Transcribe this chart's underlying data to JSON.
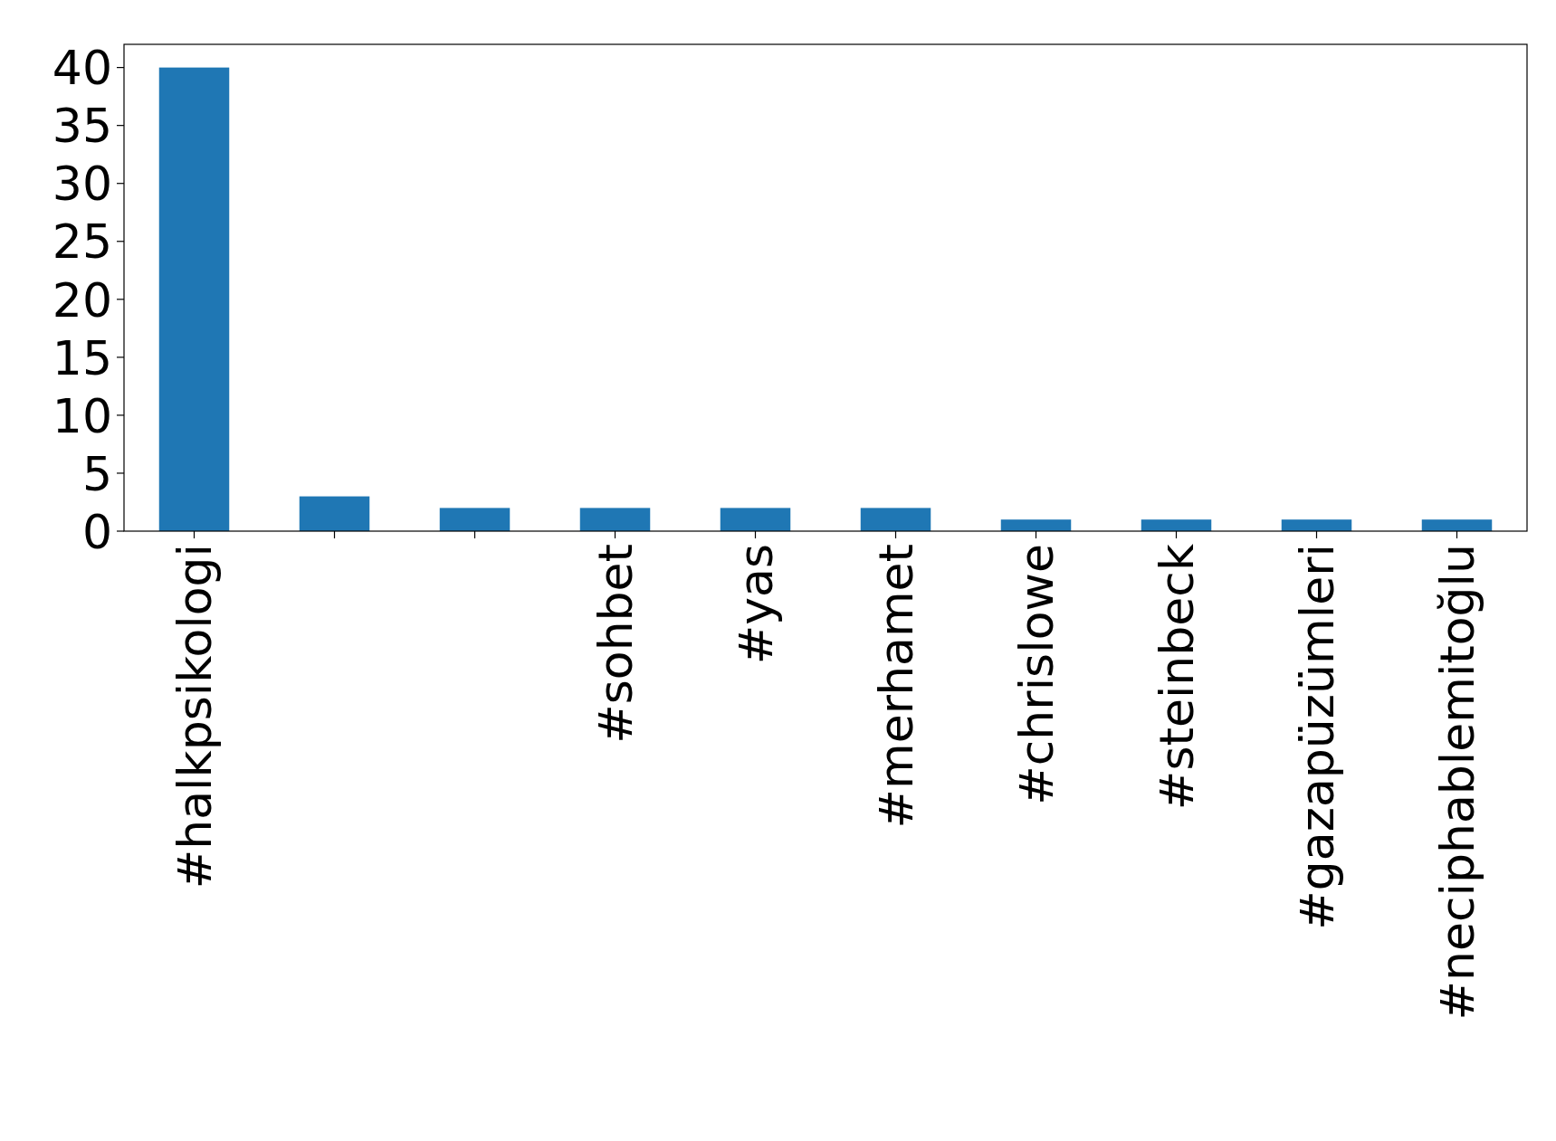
{
  "chart_data": {
    "type": "bar",
    "categories": [
      "#halkpsikologi",
      null,
      null,
      "#sohbet",
      "#yas",
      "#merhamet",
      "#chrislowe",
      "#steinbeck",
      "#gazapüzümleri",
      "#neciphablemitoğlu"
    ],
    "values": [
      40,
      3,
      2,
      2,
      2,
      2,
      1,
      1,
      1,
      1
    ],
    "color": "#1f77b4",
    "ylim": [
      0,
      42
    ],
    "yticks": [
      0,
      5,
      10,
      15,
      20,
      25,
      30,
      35,
      40
    ]
  }
}
